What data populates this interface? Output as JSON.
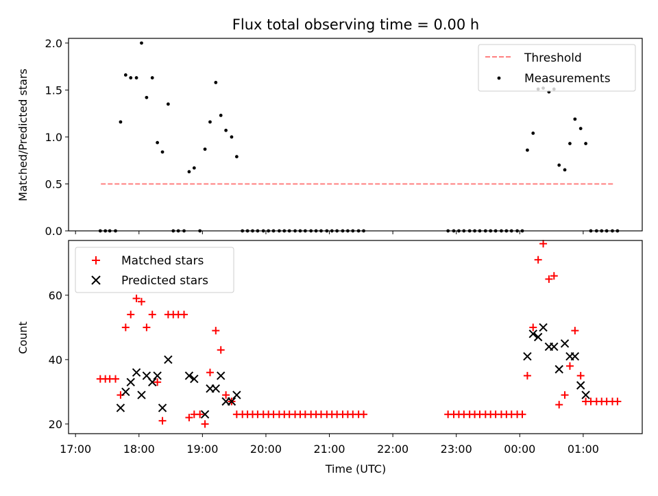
{
  "chart_data": [
    {
      "type": "scatter",
      "title": "Flux total observing time = 0.00 h",
      "xlabel": "",
      "ylabel": "Matched/Predicted stars",
      "ylim": [
        0,
        2.05
      ],
      "yticks": [
        0.0,
        0.5,
        1.0,
        1.5,
        2.0
      ],
      "ytick_labels": [
        "0.0",
        "0.5",
        "1.0",
        "1.5",
        "2.0"
      ],
      "legend": {
        "position": "top-right",
        "entries": [
          "Threshold",
          "Measurements"
        ]
      },
      "threshold": {
        "name": "Threshold",
        "value": 0.5,
        "x_start_h": 17.4,
        "x_end_h": 25.5,
        "color": "#ff7f7f"
      },
      "measurements": {
        "name": "Measurements",
        "color": "#000000",
        "x_hours": [
          17.39,
          17.47,
          17.54,
          17.63,
          17.71,
          17.79,
          17.87,
          17.96,
          18.04,
          18.12,
          18.21,
          18.29,
          18.37,
          18.46,
          18.54,
          18.62,
          18.71,
          18.79,
          18.87,
          18.96,
          19.04,
          19.12,
          19.21,
          19.29,
          19.37,
          19.46,
          19.54,
          19.63,
          19.71,
          19.79,
          19.87,
          19.96,
          20.04,
          20.12,
          20.21,
          20.29,
          20.37,
          20.46,
          20.54,
          20.62,
          20.71,
          20.79,
          20.87,
          20.96,
          21.04,
          21.12,
          21.21,
          21.29,
          21.37,
          21.46,
          21.54,
          22.87,
          22.96,
          23.04,
          23.12,
          23.21,
          23.29,
          23.37,
          23.46,
          23.54,
          23.62,
          23.71,
          23.79,
          23.87,
          23.96,
          24.04,
          24.12,
          24.21,
          24.29,
          24.37,
          24.46,
          24.54,
          24.62,
          24.71,
          24.79,
          24.87,
          24.96,
          25.04,
          25.12,
          25.21,
          25.29,
          25.37,
          25.46,
          25.54
        ],
        "y": [
          0.0,
          0.0,
          0.0,
          0.0,
          1.16,
          1.66,
          1.63,
          1.63,
          2.0,
          1.42,
          1.63,
          0.94,
          0.84,
          1.35,
          0.0,
          0.0,
          0.0,
          0.63,
          0.67,
          0.0,
          0.87,
          1.16,
          1.58,
          1.23,
          1.07,
          1.0,
          0.79,
          0.0,
          0.0,
          0.0,
          0.0,
          0.0,
          0.0,
          0.0,
          0.0,
          0.0,
          0.0,
          0.0,
          0.0,
          0.0,
          0.0,
          0.0,
          0.0,
          0.0,
          0.0,
          0.0,
          0.0,
          0.0,
          0.0,
          0.0,
          0.0,
          0.0,
          0.0,
          0.0,
          0.0,
          0.0,
          0.0,
          0.0,
          0.0,
          0.0,
          0.0,
          0.0,
          0.0,
          0.0,
          0.0,
          0.0,
          0.86,
          1.04,
          1.51,
          1.52,
          1.48,
          1.51,
          0.7,
          0.65,
          0.93,
          1.19,
          1.09,
          0.93,
          0.0,
          0.0,
          0.0,
          0.0,
          0.0,
          0.0
        ]
      }
    },
    {
      "type": "scatter",
      "title": "",
      "xlabel": "Time (UTC)",
      "ylabel": "Count",
      "ylim": [
        17,
        77
      ],
      "yticks": [
        20,
        40,
        60
      ],
      "ytick_labels": [
        "20",
        "40",
        "60"
      ],
      "x_tick_hours": [
        17,
        18,
        19,
        20,
        21,
        22,
        23,
        24,
        25
      ],
      "x_tick_labels": [
        "17:00",
        "18:00",
        "19:00",
        "20:00",
        "21:00",
        "22:00",
        "23:00",
        "00:00",
        "01:00"
      ],
      "xlim_hours": [
        16.89,
        25.93
      ],
      "legend": {
        "position": "top-left",
        "entries": [
          "Matched stars",
          "Predicted stars"
        ]
      },
      "series": [
        {
          "name": "Matched stars",
          "marker": "+",
          "color": "#ff0000",
          "x_hours": [
            17.39,
            17.47,
            17.54,
            17.63,
            17.71,
            17.79,
            17.87,
            17.96,
            18.04,
            18.12,
            18.21,
            18.29,
            18.37,
            18.46,
            18.54,
            18.62,
            18.71,
            18.79,
            18.87,
            18.96,
            19.04,
            19.12,
            19.21,
            19.29,
            19.37,
            19.46,
            19.54,
            19.63,
            19.71,
            19.79,
            19.87,
            19.96,
            20.04,
            20.12,
            20.21,
            20.29,
            20.37,
            20.46,
            20.54,
            20.62,
            20.71,
            20.79,
            20.87,
            20.96,
            21.04,
            21.12,
            21.21,
            21.29,
            21.37,
            21.46,
            21.54,
            22.87,
            22.96,
            23.04,
            23.12,
            23.21,
            23.29,
            23.37,
            23.46,
            23.54,
            23.62,
            23.71,
            23.79,
            23.87,
            23.96,
            24.04,
            24.12,
            24.21,
            24.29,
            24.37,
            24.46,
            24.54,
            24.62,
            24.71,
            24.79,
            24.87,
            24.96,
            25.04,
            25.12,
            25.21,
            25.29,
            25.37,
            25.46,
            25.54
          ],
          "y": [
            34,
            34,
            34,
            34,
            29,
            50,
            54,
            59,
            58,
            50,
            54,
            33,
            21,
            54,
            54,
            54,
            54,
            22,
            23,
            23,
            20,
            36,
            49,
            43,
            29,
            27,
            23,
            23,
            23,
            23,
            23,
            23,
            23,
            23,
            23,
            23,
            23,
            23,
            23,
            23,
            23,
            23,
            23,
            23,
            23,
            23,
            23,
            23,
            23,
            23,
            23,
            23,
            23,
            23,
            23,
            23,
            23,
            23,
            23,
            23,
            23,
            23,
            23,
            23,
            23,
            23,
            35,
            50,
            71,
            76,
            65,
            66,
            26,
            29,
            38,
            49,
            35,
            27,
            27,
            27,
            27,
            27,
            27,
            27
          ]
        },
        {
          "name": "Predicted stars",
          "marker": "x",
          "color": "#000000",
          "x_hours": [
            17.71,
            17.79,
            17.87,
            17.96,
            18.04,
            18.12,
            18.21,
            18.29,
            18.37,
            18.46,
            18.79,
            18.87,
            19.04,
            19.12,
            19.21,
            19.29,
            19.37,
            19.46,
            19.54,
            24.12,
            24.21,
            24.29,
            24.37,
            24.46,
            24.54,
            24.62,
            24.71,
            24.79,
            24.87,
            24.96,
            25.04
          ],
          "y": [
            25,
            30,
            33,
            36,
            29,
            35,
            33,
            35,
            25,
            40,
            35,
            34,
            23,
            31,
            31,
            35,
            27,
            27,
            29,
            41,
            48,
            47,
            50,
            44,
            44,
            37,
            45,
            41,
            41,
            32,
            29
          ]
        }
      ]
    }
  ]
}
